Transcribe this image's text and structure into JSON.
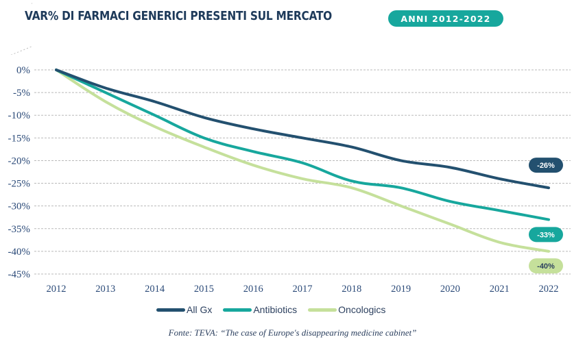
{
  "header": {
    "title": "VAR% DI FARMACI GENERICI PRESENTI SUL MERCATO",
    "period_badge": "ANNI 2012-2022"
  },
  "colors": {
    "all_gx": "#23506f",
    "antibiotics": "#17a79d",
    "oncologics": "#c5e09b",
    "text": "#2b4a78",
    "title": "#1e3a5a",
    "grid": "#b9b9b9"
  },
  "legend": {
    "items": [
      {
        "label": "All Gx",
        "color": "#23506f"
      },
      {
        "label": "Antibiotics",
        "color": "#17a79d"
      },
      {
        "label": "Oncologics",
        "color": "#c5e09b"
      }
    ]
  },
  "source": "Fonte: TEVA: “The case of Europe's disappearing medicine cabinet”",
  "chart_data": {
    "type": "line",
    "title": "VAR% DI FARMACI GENERICI PRESENTI SUL MERCATO",
    "subtitle": "ANNI 2012-2022",
    "xlabel": "",
    "ylabel": "",
    "x": [
      "2012",
      "2013",
      "2014",
      "2015",
      "2016",
      "2017",
      "2018",
      "2019",
      "2020",
      "2021",
      "2022"
    ],
    "ylim": [
      -45,
      0
    ],
    "yticks": [
      0,
      -5,
      -10,
      -15,
      -20,
      -25,
      -30,
      -35,
      -40,
      -45
    ],
    "ytick_labels": [
      "0%",
      "-5%",
      "-10%",
      "-15%",
      "-20%",
      "-25%",
      "-30%",
      "-35%",
      "-40%",
      "-45%"
    ],
    "grid": "horizontal-dashed",
    "legend_position": "bottom",
    "series": [
      {
        "name": "All Gx",
        "color": "#23506f",
        "values": [
          0,
          -4,
          -7,
          -10.5,
          -13,
          -15,
          -17,
          -20,
          -21.5,
          -24,
          -26
        ],
        "end_label": "-26%"
      },
      {
        "name": "Antibiotics",
        "color": "#17a79d",
        "values": [
          0,
          -5,
          -10,
          -15,
          -18,
          -20.5,
          -24.5,
          -26,
          -29,
          -31,
          -33
        ],
        "end_label": "-33%"
      },
      {
        "name": "Oncologics",
        "color": "#c5e09b",
        "values": [
          0,
          -7,
          -12.5,
          -17,
          -21,
          -24,
          -26,
          -30,
          -34,
          -38,
          -40
        ],
        "end_label": "-40%"
      }
    ],
    "source": "Fonte: TEVA: “The case of Europe's disappearing medicine cabinet”"
  }
}
